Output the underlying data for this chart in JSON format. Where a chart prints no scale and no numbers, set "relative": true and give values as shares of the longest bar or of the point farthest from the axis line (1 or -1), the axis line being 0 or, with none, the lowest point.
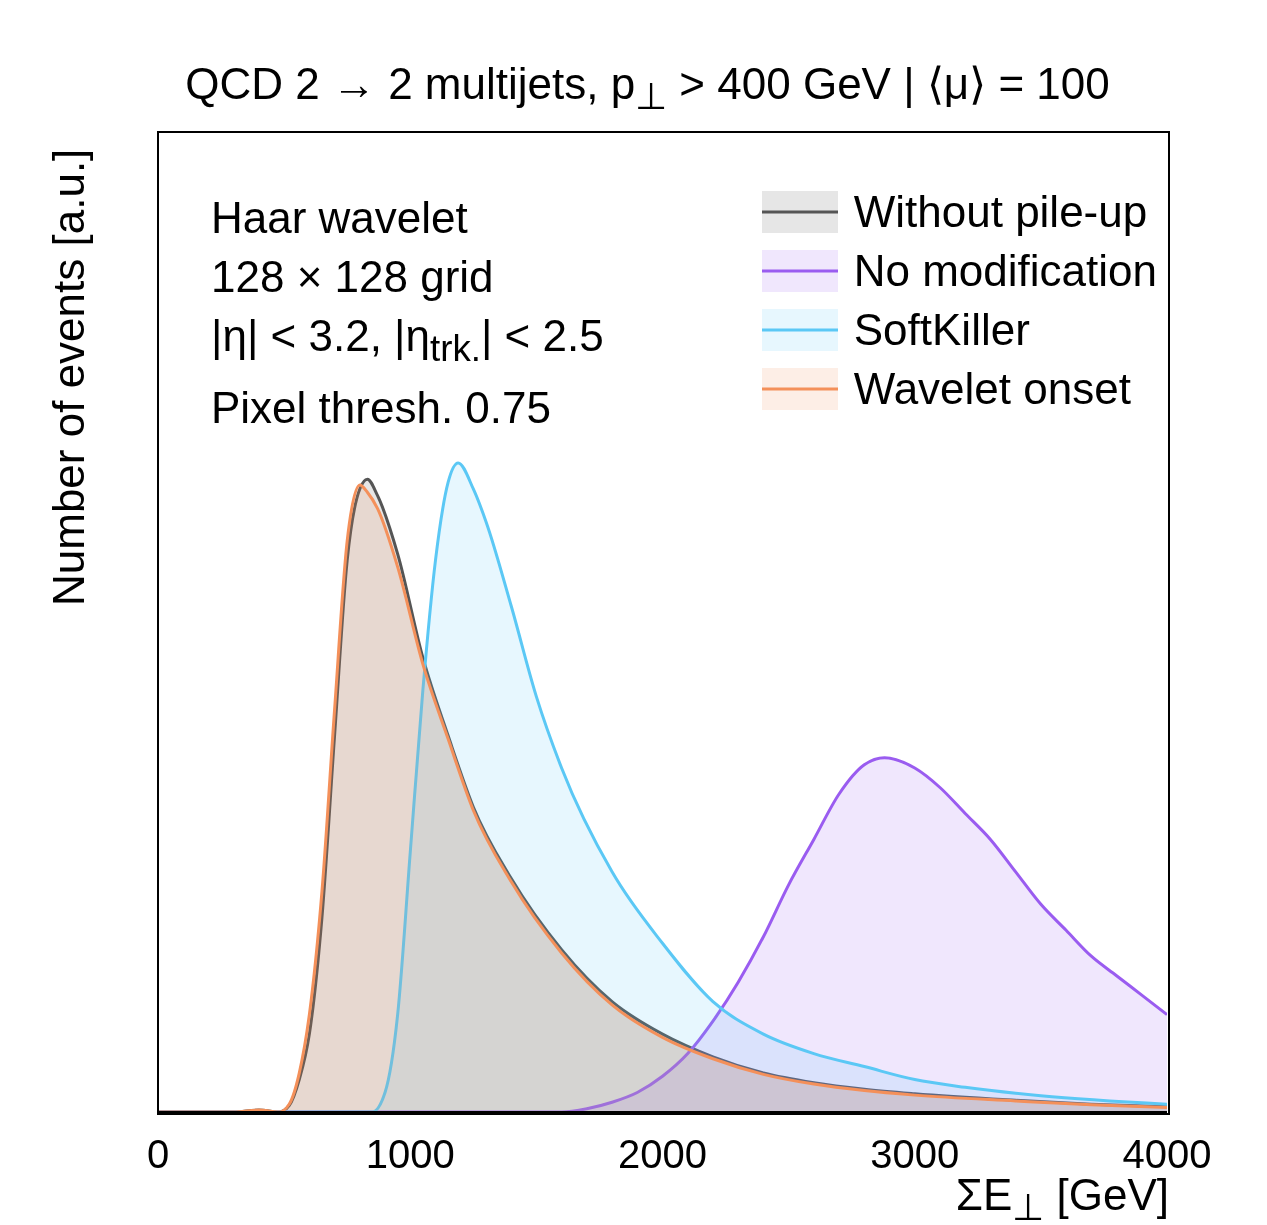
{
  "chart_data": {
    "type": "area",
    "title": "QCD 2 → 2 multijets, p$_{⊥}$ > 400 GeV  |  ⟨μ⟩ = 100",
    "xlabel": "ΣE$_{⊥}$ [GeV]",
    "ylabel": "Number of events [a.u.]",
    "relative": true,
    "xlim": [
      0,
      4000
    ],
    "xticks": [
      0,
      1000,
      2000,
      3000,
      4000
    ],
    "legend": "top right",
    "grid": false,
    "annotations": [
      "Haar wavelet",
      "128 × 128 grid",
      "|η| < 3.2, |η$_{trk.}$| < 2.5",
      "Pixel thresh. 0.75"
    ],
    "series": [
      {
        "name": "Without pile-up",
        "color": "#555555",
        "x": [
          0,
          300,
          400,
          480,
          520,
          560,
          600,
          650,
          700,
          750,
          800,
          830,
          870,
          950,
          1050,
          1150,
          1250,
          1400,
          1600,
          1800,
          2000,
          2200,
          2400,
          2600,
          2800,
          3000,
          3400,
          3700,
          4000
        ],
        "values": [
          0,
          0,
          0.003,
          0,
          0.01,
          0.05,
          0.12,
          0.3,
          0.58,
          0.85,
          0.96,
          0.975,
          0.95,
          0.86,
          0.7,
          0.58,
          0.47,
          0.36,
          0.25,
          0.17,
          0.12,
          0.085,
          0.06,
          0.045,
          0.035,
          0.028,
          0.018,
          0.012,
          0.008
        ]
      },
      {
        "name": "No modification",
        "color": "#9a5cf0",
        "x": [
          0,
          1600,
          1700,
          1800,
          1900,
          2000,
          2100,
          2200,
          2300,
          2400,
          2500,
          2600,
          2700,
          2800,
          2880,
          3000,
          3100,
          3200,
          3300,
          3400,
          3500,
          3600,
          3700,
          3800,
          3900,
          4000
        ],
        "values": [
          0,
          0,
          0.005,
          0.015,
          0.03,
          0.055,
          0.09,
          0.14,
          0.2,
          0.27,
          0.35,
          0.42,
          0.49,
          0.535,
          0.546,
          0.53,
          0.5,
          0.46,
          0.42,
          0.37,
          0.32,
          0.28,
          0.24,
          0.21,
          0.18,
          0.15
        ]
      },
      {
        "name": "SoftKiller",
        "color": "#5bc8f5",
        "x": [
          0,
          850,
          900,
          950,
          1000,
          1050,
          1100,
          1150,
          1190,
          1250,
          1300,
          1400,
          1500,
          1600,
          1800,
          2000,
          2200,
          2400,
          2600,
          2800,
          3000,
          3200,
          3500,
          4000
        ],
        "values": [
          0,
          0,
          0.03,
          0.15,
          0.4,
          0.65,
          0.85,
          0.97,
          1,
          0.96,
          0.91,
          0.78,
          0.64,
          0.53,
          0.37,
          0.26,
          0.17,
          0.12,
          0.09,
          0.07,
          0.05,
          0.038,
          0.025,
          0.012
        ]
      },
      {
        "name": "Wavelet onset",
        "color": "#f4905a",
        "x": [
          0,
          300,
          400,
          480,
          520,
          560,
          600,
          650,
          700,
          750,
          800,
          830,
          870,
          950,
          1050,
          1150,
          1250,
          1400,
          1600,
          1800,
          2000,
          2200,
          2400,
          2600,
          2800,
          3000,
          3400,
          3700,
          4000
        ],
        "values": [
          0,
          0,
          0.003,
          0,
          0.012,
          0.06,
          0.15,
          0.34,
          0.62,
          0.88,
          0.966,
          0.955,
          0.93,
          0.84,
          0.69,
          0.575,
          0.465,
          0.355,
          0.245,
          0.165,
          0.115,
          0.082,
          0.058,
          0.043,
          0.033,
          0.026,
          0.017,
          0.011,
          0.007
        ]
      }
    ]
  }
}
